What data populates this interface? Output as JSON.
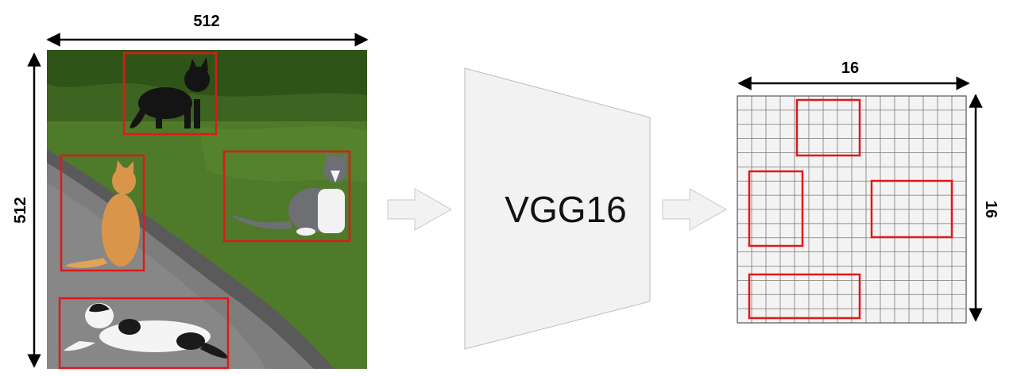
{
  "input_image": {
    "width_label": "512",
    "height_label": "512",
    "detections": [
      "cat",
      "cat",
      "cat",
      "cat"
    ]
  },
  "network": {
    "name": "VGG16"
  },
  "feature_map": {
    "width_label": "16",
    "height_label": "16",
    "grid_size": 16
  },
  "colors": {
    "box": "#e01818",
    "arrow_fill": "#f2f2f2",
    "network_fill": "#f2f2f2",
    "grid_line": "#777777"
  }
}
